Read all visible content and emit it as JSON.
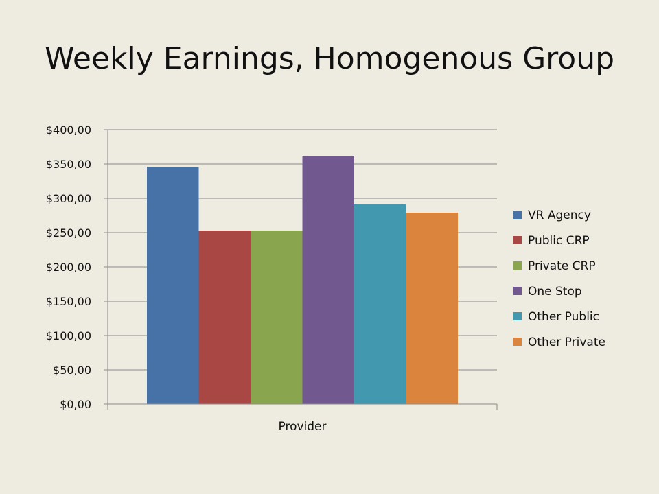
{
  "slide": {
    "title": "Weekly Earnings, Homogenous Group"
  },
  "chart_data": {
    "type": "bar",
    "title": "Weekly Earnings, Homogenous Group",
    "categories": [
      "Provider"
    ],
    "xlabel": "",
    "ylabel": "",
    "ylim": [
      0,
      400
    ],
    "yticks": [
      "$0,00",
      "$50,00",
      "$100,00",
      "$150,00",
      "$200,00",
      "$250,00",
      "$300,00",
      "$350,00",
      "$400,00"
    ],
    "grid": true,
    "legend_position": "right",
    "series": [
      {
        "name": "VR Agency",
        "values": [
          346
        ],
        "color": "#4672a8"
      },
      {
        "name": "Public CRP",
        "values": [
          253
        ],
        "color": "#a94745"
      },
      {
        "name": "Private CRP",
        "values": [
          253
        ],
        "color": "#89a54e"
      },
      {
        "name": "One Stop",
        "values": [
          362
        ],
        "color": "#71588f"
      },
      {
        "name": "Other Public",
        "values": [
          291
        ],
        "color": "#4298af"
      },
      {
        "name": "Other Private",
        "values": [
          279
        ],
        "color": "#db843d"
      }
    ]
  }
}
